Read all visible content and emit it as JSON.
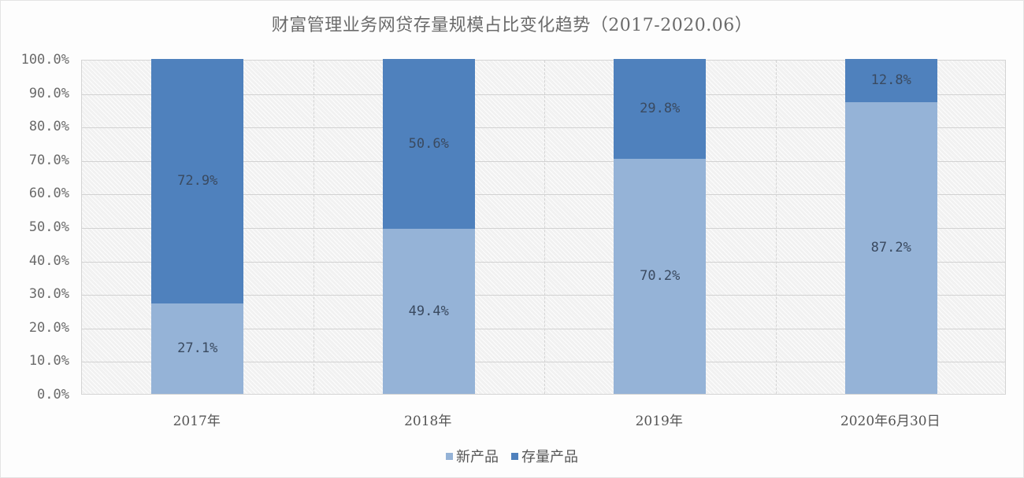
{
  "chart_data": {
    "type": "bar",
    "stacked": true,
    "title": "财富管理业务网贷存量规模占比变化趋势（2017-2020.06）",
    "xlabel": "",
    "ylabel": "",
    "ylim": [
      0,
      100
    ],
    "yticks": [
      "0.0%",
      "10.0%",
      "20.0%",
      "30.0%",
      "40.0%",
      "50.0%",
      "60.0%",
      "70.0%",
      "80.0%",
      "90.0%",
      "100.0%"
    ],
    "categories": [
      "2017年",
      "2018年",
      "2019年",
      "2020年6月30日"
    ],
    "series": [
      {
        "name": "新产品",
        "color": "#95b3d7",
        "values": [
          27.1,
          49.4,
          70.2,
          87.2
        ],
        "labels": [
          "27.1%",
          "49.4%",
          "70.2%",
          "87.2%"
        ]
      },
      {
        "name": "存量产品",
        "color": "#4f81bd",
        "values": [
          72.9,
          50.6,
          29.8,
          12.8
        ],
        "labels": [
          "72.9%",
          "50.6%",
          "29.8%",
          "12.8%"
        ]
      }
    ],
    "grid": true,
    "legend_position": "bottom"
  },
  "legend": [
    {
      "label": "新产品",
      "color": "#95b3d7"
    },
    {
      "label": "存量产品",
      "color": "#4f81bd"
    }
  ]
}
